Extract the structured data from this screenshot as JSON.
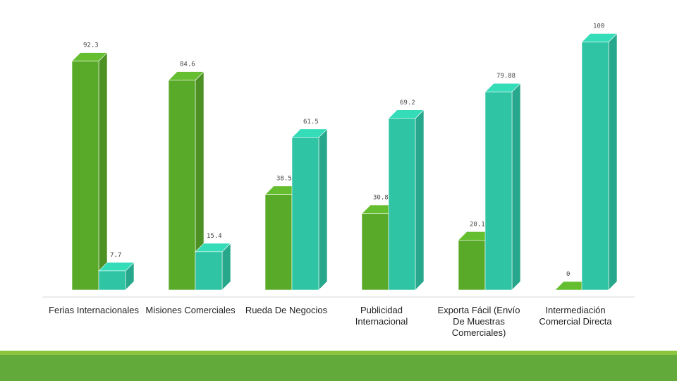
{
  "chart_data": {
    "type": "bar",
    "style": "3d-clustered-column",
    "categories": [
      "Ferias Internacionales",
      "Misiones Comerciales",
      "Rueda De Negocios",
      "Publicidad Internacional",
      "Exporta Fácil (Envío De Muestras Comerciales)",
      "Intermediación Comercial Directa"
    ],
    "series": [
      {
        "color": "#5aaa2a",
        "values": [
          92.3,
          84.6,
          38.5,
          30.8,
          20.12,
          0
        ]
      },
      {
        "color": "#2ec4a4",
        "values": [
          7.7,
          15.4,
          61.5,
          69.2,
          79.88,
          100
        ]
      }
    ],
    "data_labels": [
      [
        "92.3",
        "84.6",
        "38.5",
        "30.8",
        "20.12",
        "0"
      ],
      [
        "7.7",
        "15.4",
        "61.5",
        "69.2",
        "79.88",
        "100"
      ]
    ],
    "ylim": [
      0,
      100
    ],
    "grid": false,
    "legend": "none"
  },
  "theme": {
    "footer_color": "#62aa3a",
    "footer_stripe_color": "#8cc63f",
    "baseline_color": "#d9d9d9"
  }
}
